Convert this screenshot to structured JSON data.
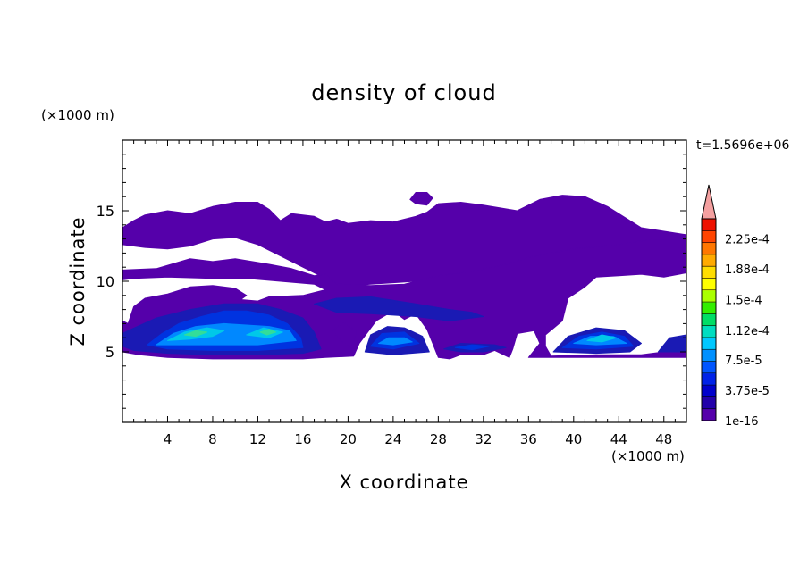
{
  "chart_data": {
    "type": "heatmap",
    "title": "density of cloud",
    "xlabel": "X coordinate",
    "ylabel": "Z coordinate",
    "x_unit": "(×1000 m)",
    "y_unit": "(×1000 m)",
    "time_label": "t=1.5696e+06",
    "xlim": [
      0,
      50
    ],
    "ylim": [
      0,
      20
    ],
    "x_ticks": [
      4,
      8,
      12,
      16,
      20,
      24,
      28,
      32,
      36,
      40,
      44,
      48
    ],
    "y_ticks": [
      5,
      10,
      15
    ],
    "colorbar": {
      "colors": [
        "#5500aa",
        "#2200aa",
        "#0000cc",
        "#0022e8",
        "#0055ff",
        "#0090ff",
        "#00c8ff",
        "#00ddc0",
        "#00dd66",
        "#33ee00",
        "#aaff00",
        "#ffff00",
        "#ffdd00",
        "#ffaa00",
        "#ff7700",
        "#ff4400",
        "#ee1100",
        "#f4a0a0"
      ],
      "labels": [
        "1e-16",
        "3.75e-5",
        "7.5e-5",
        "1.12e-4",
        "1.5e-4",
        "1.88e-4",
        "2.25e-4"
      ],
      "label_values": [
        0,
        3.75e-05,
        7.5e-05,
        0.000112,
        0.00015,
        0.000188,
        0.000225
      ],
      "max": 0.00025,
      "overflow_arrow": true
    },
    "level_colors": {
      "low": "#5500aa",
      "mid_low": "#1a1ab4",
      "mid": "#0033e0",
      "mid_high": "#0088ff",
      "high": "#00c8e8",
      "peak": "#33dd99"
    },
    "regions": [
      {
        "level": "low",
        "poly": [
          [
            0,
            13.8
          ],
          [
            1,
            14.3
          ],
          [
            2,
            14.7
          ],
          [
            4,
            15.0
          ],
          [
            6,
            14.8
          ],
          [
            8,
            15.3
          ],
          [
            10,
            15.6
          ],
          [
            12,
            15.6
          ],
          [
            13,
            15.1
          ],
          [
            14,
            14.3
          ],
          [
            15,
            14.8
          ],
          [
            17,
            14.6
          ],
          [
            18,
            14.2
          ],
          [
            19,
            14.4
          ],
          [
            20,
            14.1
          ],
          [
            22,
            14.3
          ],
          [
            24,
            14.2
          ],
          [
            26,
            14.6
          ],
          [
            27,
            14.9
          ],
          [
            28,
            15.5
          ],
          [
            30,
            15.6
          ],
          [
            32,
            15.4
          ],
          [
            35,
            15.0
          ],
          [
            37,
            15.8
          ],
          [
            39,
            16.1
          ],
          [
            41,
            16.0
          ],
          [
            43,
            15.3
          ],
          [
            46,
            13.8
          ],
          [
            50,
            13.3
          ],
          [
            50,
            12.7
          ],
          [
            46,
            12.4
          ],
          [
            42,
            12.0
          ],
          [
            38,
            11.4
          ],
          [
            34,
            10.9
          ],
          [
            30,
            10.5
          ],
          [
            26,
            10.0
          ],
          [
            22,
            9.8
          ],
          [
            19,
            9.6
          ],
          [
            18,
            10.2
          ],
          [
            16,
            11.0
          ],
          [
            14,
            11.8
          ],
          [
            12,
            12.6
          ],
          [
            10,
            13.1
          ],
          [
            8,
            13.0
          ],
          [
            6,
            12.5
          ],
          [
            4,
            12.3
          ],
          [
            2,
            12.4
          ],
          [
            0,
            12.6
          ]
        ]
      },
      {
        "level": "low",
        "poly": [
          [
            0,
            10.8
          ],
          [
            3,
            10.9
          ],
          [
            6,
            11.6
          ],
          [
            8,
            11.4
          ],
          [
            10,
            11.6
          ],
          [
            13,
            11.2
          ],
          [
            15,
            10.9
          ],
          [
            17,
            10.4
          ],
          [
            18,
            10.5
          ],
          [
            19,
            9.8
          ],
          [
            22,
            9.7
          ],
          [
            25,
            9.8
          ],
          [
            28,
            10.4
          ],
          [
            31,
            10.7
          ],
          [
            34,
            11.2
          ],
          [
            36,
            11.7
          ],
          [
            40,
            12.3
          ],
          [
            44,
            12.6
          ],
          [
            47,
            13.0
          ],
          [
            50,
            13.0
          ],
          [
            50,
            10.6
          ],
          [
            48,
            10.3
          ],
          [
            46,
            10.5
          ],
          [
            44,
            10.4
          ],
          [
            42,
            10.3
          ],
          [
            41,
            9.6
          ],
          [
            39.5,
            8.8
          ],
          [
            39,
            7.2
          ],
          [
            37.5,
            6.2
          ],
          [
            37.5,
            5.4
          ],
          [
            38,
            4.7
          ],
          [
            42,
            4.8
          ],
          [
            46,
            4.8
          ],
          [
            48,
            5.0
          ],
          [
            50,
            5.4
          ],
          [
            50,
            4.6
          ],
          [
            48,
            4.6
          ],
          [
            42,
            4.6
          ],
          [
            36,
            4.6
          ],
          [
            37,
            5.6
          ],
          [
            36.5,
            6.5
          ],
          [
            35,
            6.3
          ],
          [
            34.6,
            5.2
          ],
          [
            34.3,
            4.6
          ],
          [
            33,
            5.1
          ],
          [
            32,
            4.8
          ],
          [
            30,
            4.8
          ],
          [
            29,
            4.5
          ],
          [
            28,
            4.6
          ],
          [
            27.5,
            5.6
          ],
          [
            27,
            6.6
          ],
          [
            26,
            7.7
          ],
          [
            25,
            7.3
          ],
          [
            24,
            7.9
          ],
          [
            22.5,
            7.2
          ],
          [
            21,
            5.6
          ],
          [
            20.5,
            4.7
          ],
          [
            18,
            4.6
          ],
          [
            16,
            4.5
          ],
          [
            12,
            4.5
          ],
          [
            8,
            4.5
          ],
          [
            4,
            4.6
          ],
          [
            1.5,
            4.8
          ],
          [
            0,
            5.0
          ],
          [
            0,
            7.2
          ],
          [
            0.5,
            7.0
          ],
          [
            1,
            8.2
          ],
          [
            2,
            8.8
          ],
          [
            4,
            9.1
          ],
          [
            6,
            9.6
          ],
          [
            8,
            9.7
          ],
          [
            10,
            9.5
          ],
          [
            11,
            9.0
          ],
          [
            10.5,
            8.7
          ],
          [
            12,
            8.6
          ],
          [
            13,
            8.9
          ],
          [
            16,
            9.0
          ],
          [
            18,
            9.4
          ],
          [
            17,
            9.8
          ],
          [
            14,
            10.0
          ],
          [
            11,
            10.2
          ],
          [
            8,
            10.2
          ],
          [
            4,
            10.3
          ],
          [
            1,
            10.2
          ],
          [
            0,
            10.1
          ]
        ]
      },
      {
        "level": "low",
        "poly": [
          [
            18.6,
            6.5
          ],
          [
            19.5,
            5.7
          ],
          [
            20.3,
            5.3
          ],
          [
            20.8,
            6.4
          ],
          [
            19.6,
            7.1
          ]
        ]
      },
      {
        "level": "low",
        "poly": [
          [
            25.5,
            15.8
          ],
          [
            26,
            16.3
          ],
          [
            27,
            16.3
          ],
          [
            27.5,
            15.9
          ],
          [
            27,
            15.4
          ],
          [
            26,
            15.5
          ]
        ]
      },
      {
        "level": "mid_low",
        "poly": [
          [
            0.5,
            6.5
          ],
          [
            3,
            7.4
          ],
          [
            6,
            8.0
          ],
          [
            9,
            8.4
          ],
          [
            12,
            8.4
          ],
          [
            14,
            8.0
          ],
          [
            16,
            7.4
          ],
          [
            17,
            6.4
          ],
          [
            17.6,
            5.2
          ],
          [
            16,
            4.9
          ],
          [
            12,
            4.8
          ],
          [
            8,
            4.8
          ],
          [
            4,
            4.9
          ],
          [
            1,
            5.1
          ],
          [
            0,
            5.4
          ],
          [
            0,
            6.3
          ]
        ]
      },
      {
        "level": "mid_low",
        "poly": [
          [
            21.5,
            5.0
          ],
          [
            22,
            6.2
          ],
          [
            23.5,
            6.8
          ],
          [
            25,
            6.7
          ],
          [
            26.6,
            6.1
          ],
          [
            27.2,
            5.0
          ],
          [
            24,
            4.8
          ]
        ]
      },
      {
        "level": "mid_low",
        "poly": [
          [
            38.2,
            5.0
          ],
          [
            39.5,
            6.1
          ],
          [
            42,
            6.7
          ],
          [
            44.5,
            6.5
          ],
          [
            46,
            5.6
          ],
          [
            45,
            5.0
          ],
          [
            42,
            4.9
          ]
        ]
      },
      {
        "level": "mid_low",
        "poly": [
          [
            47.5,
            5.0
          ],
          [
            48.5,
            6.0
          ],
          [
            50,
            6.2
          ],
          [
            50,
            5.0
          ]
        ]
      },
      {
        "level": "mid_low",
        "poly": [
          [
            17,
            8.4
          ],
          [
            19,
            8.8
          ],
          [
            22,
            8.9
          ],
          [
            26,
            8.4
          ],
          [
            29,
            8.0
          ],
          [
            31,
            7.8
          ],
          [
            32,
            7.5
          ],
          [
            29,
            7.2
          ],
          [
            26,
            7.5
          ],
          [
            22,
            7.7
          ],
          [
            19,
            7.8
          ]
        ]
      },
      {
        "level": "mid_low",
        "poly": [
          [
            28.5,
            5.2
          ],
          [
            30,
            5.6
          ],
          [
            33,
            5.5
          ],
          [
            34,
            5.3
          ],
          [
            32,
            5.0
          ],
          [
            30,
            5.0
          ]
        ]
      },
      {
        "level": "mid",
        "poly": [
          [
            2.2,
            5.5
          ],
          [
            3.5,
            6.3
          ],
          [
            5,
            7.0
          ],
          [
            7,
            7.5
          ],
          [
            9,
            7.9
          ],
          [
            11,
            7.9
          ],
          [
            13,
            7.6
          ],
          [
            14.6,
            7.0
          ],
          [
            15.8,
            6.0
          ],
          [
            16,
            5.3
          ],
          [
            12,
            5.1
          ],
          [
            8,
            5.1
          ],
          [
            4,
            5.2
          ]
        ]
      },
      {
        "level": "mid",
        "poly": [
          [
            22,
            5.4
          ],
          [
            23,
            6.3
          ],
          [
            25,
            6.4
          ],
          [
            26.3,
            5.6
          ],
          [
            24,
            5.2
          ]
        ]
      },
      {
        "level": "mid",
        "poly": [
          [
            39,
            5.3
          ],
          [
            40.5,
            6.1
          ],
          [
            42.5,
            6.4
          ],
          [
            44.5,
            6.1
          ],
          [
            45.3,
            5.4
          ],
          [
            42,
            5.2
          ]
        ]
      },
      {
        "level": "mid",
        "poly": [
          [
            29.5,
            5.3
          ],
          [
            31,
            5.5
          ],
          [
            32.5,
            5.4
          ],
          [
            31,
            5.15
          ]
        ]
      },
      {
        "level": "mid_high",
        "poly": [
          [
            3,
            5.5
          ],
          [
            4.5,
            6.3
          ],
          [
            6.5,
            6.8
          ],
          [
            9,
            7.0
          ],
          [
            11,
            6.9
          ],
          [
            13,
            6.8
          ],
          [
            14.8,
            6.5
          ],
          [
            15.4,
            5.8
          ],
          [
            12,
            5.5
          ],
          [
            8,
            5.5
          ],
          [
            5,
            5.5
          ]
        ]
      },
      {
        "level": "mid_high",
        "poly": [
          [
            22.7,
            5.6
          ],
          [
            23.6,
            6.0
          ],
          [
            25,
            6.0
          ],
          [
            25.7,
            5.7
          ],
          [
            24,
            5.5
          ]
        ]
      },
      {
        "level": "mid_high",
        "poly": [
          [
            40,
            5.6
          ],
          [
            41.5,
            6.1
          ],
          [
            43.5,
            6.1
          ],
          [
            44.7,
            5.6
          ],
          [
            42,
            5.5
          ]
        ]
      },
      {
        "level": "high",
        "poly": [
          [
            4,
            5.8
          ],
          [
            5.5,
            6.4
          ],
          [
            7.5,
            6.7
          ],
          [
            9,
            6.5
          ],
          [
            8,
            6.1
          ],
          [
            6,
            5.9
          ]
        ]
      },
      {
        "level": "high",
        "poly": [
          [
            11,
            6.2
          ],
          [
            12.5,
            6.7
          ],
          [
            14.2,
            6.4
          ],
          [
            13,
            6.0
          ]
        ]
      },
      {
        "level": "high",
        "poly": [
          [
            41.2,
            5.8
          ],
          [
            42.5,
            6.2
          ],
          [
            43.8,
            6.0
          ],
          [
            42.5,
            5.7
          ]
        ]
      },
      {
        "level": "peak",
        "poly": [
          [
            5.5,
            6.2
          ],
          [
            6.5,
            6.5
          ],
          [
            7.5,
            6.4
          ],
          [
            6.5,
            6.1
          ]
        ]
      },
      {
        "level": "peak",
        "poly": [
          [
            12.2,
            6.4
          ],
          [
            13,
            6.6
          ],
          [
            13.6,
            6.4
          ],
          [
            12.8,
            6.2
          ]
        ]
      }
    ]
  }
}
